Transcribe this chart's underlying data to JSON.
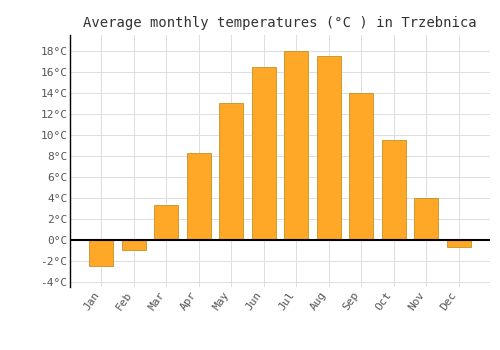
{
  "months": [
    "Jan",
    "Feb",
    "Mar",
    "Apr",
    "May",
    "Jun",
    "Jul",
    "Aug",
    "Sep",
    "Oct",
    "Nov",
    "Dec"
  ],
  "temperatures": [
    -2.5,
    -1.0,
    3.3,
    8.3,
    13.0,
    16.5,
    18.0,
    17.5,
    14.0,
    9.5,
    4.0,
    -0.7
  ],
  "bar_color": "#FFA726",
  "bar_edge_color": "#B8860B",
  "background_color": "#FFFFFF",
  "plot_bg_color": "#FFFFFF",
  "title": "Average monthly temperatures (°C ) in Trzebnica",
  "title_fontsize": 10,
  "tick_label_fontsize": 8,
  "ylim": [
    -4.5,
    19.5
  ],
  "yticks": [
    -4,
    -2,
    0,
    2,
    4,
    6,
    8,
    10,
    12,
    14,
    16,
    18
  ],
  "ytick_labels": [
    "-4°C",
    "-2°C",
    "0°C",
    "2°C",
    "4°C",
    "6°C",
    "8°C",
    "10°C",
    "12°C",
    "14°C",
    "16°C",
    "18°C"
  ],
  "zero_line_color": "#000000",
  "grid_color": "#DDDDDD",
  "font_family": "monospace",
  "bar_width": 0.75
}
